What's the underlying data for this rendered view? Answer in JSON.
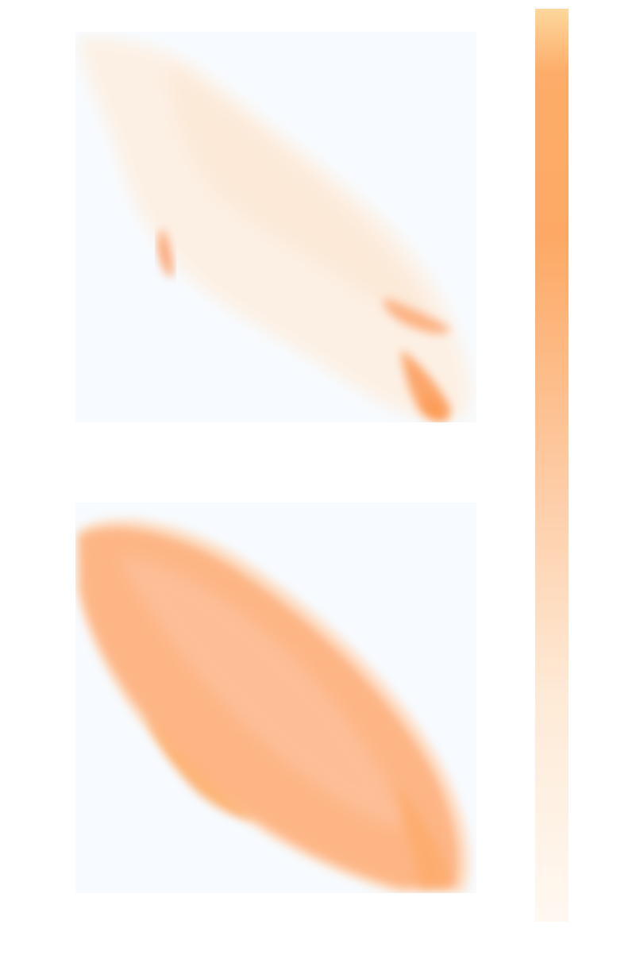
{
  "chart_data": [
    {
      "type": "heatmap",
      "title": "",
      "xlabel": "",
      "ylabel": "",
      "shape": "diagonal density band from top-left to bottom-right, mostly very light with two strong streaks near the lower-right corner and one short streak at left-center",
      "grid": "off",
      "ticks": "none",
      "background_color": "#f7fbff",
      "intensity_levels": {
        "band": 0.06,
        "left_streak": 0.42,
        "lower_right_streak": 0.5,
        "lower_right_tip": 0.72
      }
    },
    {
      "type": "heatmap",
      "title": "",
      "xlabel": "",
      "ylabel": "",
      "shape": "filled lens-shaped region along the main diagonal, medium intensity with a brighter lower-left edge",
      "grid": "off",
      "ticks": "none",
      "background_color": "#f7fbff",
      "intensity_levels": {
        "fill": 0.45,
        "lower_edge": 0.6,
        "rim": 0.12
      }
    }
  ],
  "colorbar": {
    "colormap": "oranges-light",
    "orientation": "vertical",
    "low_color": "#fff7ef",
    "mid_color": "#fdd0a8",
    "high_color": "#fda965",
    "top_color": "#fdd79c",
    "tick_labels": []
  }
}
